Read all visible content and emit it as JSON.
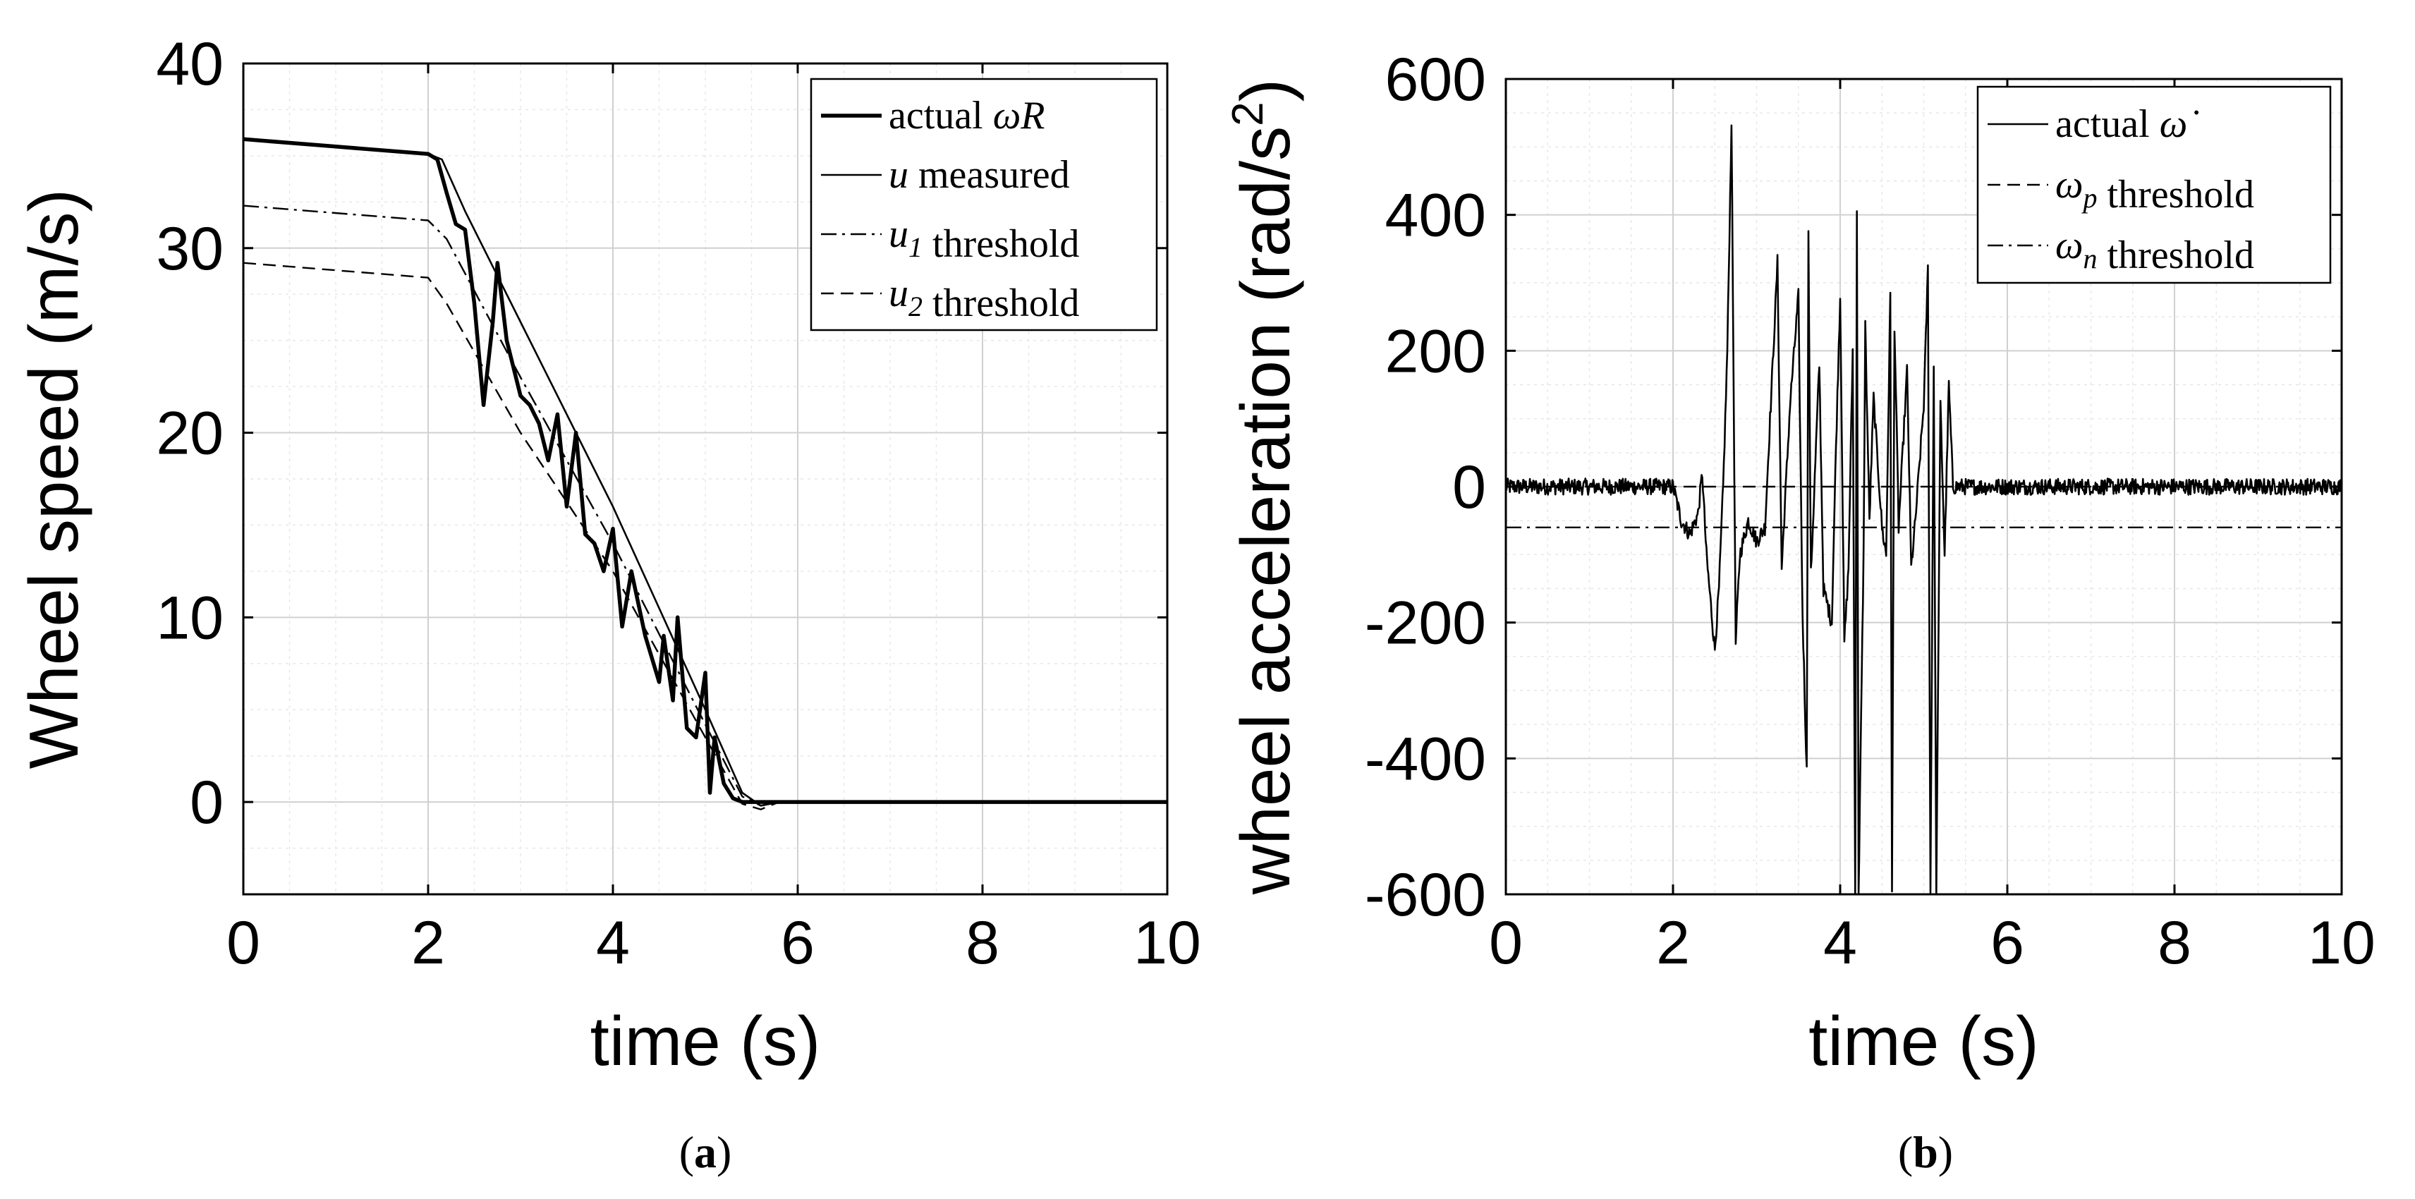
{
  "chart_data": [
    {
      "type": "line",
      "xlabel": "time (s)",
      "ylabel": "Wheel speed (m/s)",
      "xlim": [
        0,
        10
      ],
      "ylim": [
        -5,
        40
      ],
      "xticks": [
        "0",
        "2",
        "4",
        "6",
        "8",
        "10"
      ],
      "yticks": [
        "0",
        "10",
        "20",
        "30",
        "40"
      ],
      "grid": true,
      "legend_position": "top-right",
      "caption_letter": "a",
      "series": [
        {
          "name": "actual ωR",
          "legend_label": "actual ",
          "legend_math": "ωR",
          "style": "thick-solid",
          "points": [
            [
              0,
              35.9
            ],
            [
              1.0,
              35.5
            ],
            [
              2.0,
              35.1
            ],
            [
              2.1,
              34.8
            ],
            [
              2.2,
              33.0
            ],
            [
              2.3,
              31.3
            ],
            [
              2.4,
              31.0
            ],
            [
              2.5,
              27.0
            ],
            [
              2.6,
              21.5
            ],
            [
              2.7,
              26.0
            ],
            [
              2.75,
              29.2
            ],
            [
              2.85,
              25.0
            ],
            [
              3.0,
              22.0
            ],
            [
              3.1,
              21.5
            ],
            [
              3.2,
              20.5
            ],
            [
              3.3,
              18.5
            ],
            [
              3.4,
              21.0
            ],
            [
              3.5,
              16.0
            ],
            [
              3.6,
              20.0
            ],
            [
              3.7,
              14.5
            ],
            [
              3.8,
              14.0
            ],
            [
              3.9,
              12.5
            ],
            [
              4.0,
              14.8
            ],
            [
              4.1,
              9.5
            ],
            [
              4.2,
              12.5
            ],
            [
              4.35,
              9.0
            ],
            [
              4.5,
              6.5
            ],
            [
              4.55,
              9.0
            ],
            [
              4.65,
              5.5
            ],
            [
              4.7,
              10.0
            ],
            [
              4.8,
              4.0
            ],
            [
              4.9,
              3.5
            ],
            [
              5.0,
              7.0
            ],
            [
              5.05,
              0.5
            ],
            [
              5.1,
              3.5
            ],
            [
              5.2,
              1.0
            ],
            [
              5.3,
              0.2
            ],
            [
              5.4,
              0.0
            ],
            [
              5.6,
              0.0
            ],
            [
              10.0,
              0.0
            ]
          ]
        },
        {
          "name": "u measured",
          "legend_label": " measured",
          "legend_math": "u",
          "style": "thin-solid",
          "points": [
            [
              0,
              35.9
            ],
            [
              2.0,
              35.1
            ],
            [
              2.15,
              34.8
            ],
            [
              2.4,
              32.0
            ],
            [
              3.0,
              26.0
            ],
            [
              4.0,
              16.0
            ],
            [
              5.0,
              5.0
            ],
            [
              5.4,
              0.5
            ],
            [
              5.6,
              -0.2
            ],
            [
              5.8,
              0.0
            ],
            [
              10.0,
              0.0
            ]
          ]
        },
        {
          "name": "u1 threshold",
          "legend_label": " threshold",
          "legend_math": "u",
          "legend_sub": "1",
          "style": "dash-dot",
          "points": [
            [
              0,
              32.3
            ],
            [
              2.0,
              31.5
            ],
            [
              2.2,
              30.5
            ],
            [
              3.0,
              23.0
            ],
            [
              4.0,
              14.0
            ],
            [
              5.0,
              4.2
            ],
            [
              5.4,
              0.3
            ],
            [
              5.6,
              -0.2
            ],
            [
              5.8,
              0.0
            ],
            [
              10.0,
              0.0
            ]
          ]
        },
        {
          "name": "u2 threshold",
          "legend_label": " threshold",
          "legend_math": "u",
          "legend_sub": "2",
          "style": "dashed",
          "points": [
            [
              0,
              29.2
            ],
            [
              2.0,
              28.4
            ],
            [
              2.2,
              27.0
            ],
            [
              3.0,
              20.0
            ],
            [
              4.0,
              12.5
            ],
            [
              5.0,
              3.5
            ],
            [
              5.4,
              -0.1
            ],
            [
              5.6,
              -0.4
            ],
            [
              5.8,
              0.0
            ],
            [
              10.0,
              0.0
            ]
          ]
        }
      ]
    },
    {
      "type": "line",
      "xlabel": "time (s)",
      "ylabel": "wheel acceleration (rad/s",
      "ylabel_sup": "2",
      "ylabel_end": ")",
      "xlim": [
        0,
        10
      ],
      "ylim": [
        -600,
        600
      ],
      "xticks": [
        "0",
        "2",
        "4",
        "6",
        "8",
        "10"
      ],
      "yticks": [
        "-600",
        "-400",
        "-200",
        "0",
        "200",
        "400",
        "600"
      ],
      "grid": true,
      "legend_position": "top-right",
      "caption_letter": "b",
      "series": [
        {
          "name": "actual ω̇",
          "legend_label": "actual ",
          "legend_math": "ω̇",
          "style": "thin-solid",
          "noise_amplitude": 12,
          "points": [
            [
              0,
              0
            ],
            [
              2.0,
              0
            ],
            [
              2.1,
              -50
            ],
            [
              2.2,
              -70
            ],
            [
              2.3,
              -40
            ],
            [
              2.35,
              20
            ],
            [
              2.4,
              -100
            ],
            [
              2.5,
              -240
            ],
            [
              2.55,
              -150
            ],
            [
              2.6,
              0
            ],
            [
              2.65,
              200
            ],
            [
              2.7,
              540
            ],
            [
              2.75,
              -230
            ],
            [
              2.8,
              -100
            ],
            [
              2.9,
              -50
            ],
            [
              3.0,
              -80
            ],
            [
              3.1,
              -60
            ],
            [
              3.2,
              200
            ],
            [
              3.25,
              330
            ],
            [
              3.3,
              -120
            ],
            [
              3.4,
              120
            ],
            [
              3.5,
              280
            ],
            [
              3.55,
              -190
            ],
            [
              3.6,
              -420
            ],
            [
              3.62,
              370
            ],
            [
              3.65,
              -130
            ],
            [
              3.75,
              180
            ],
            [
              3.8,
              -150
            ],
            [
              3.9,
              -200
            ],
            [
              3.95,
              60
            ],
            [
              4.0,
              280
            ],
            [
              4.05,
              -230
            ],
            [
              4.1,
              -120
            ],
            [
              4.15,
              200
            ],
            [
              4.18,
              -600
            ],
            [
              4.2,
              410
            ],
            [
              4.22,
              -600
            ],
            [
              4.28,
              -100
            ],
            [
              4.3,
              240
            ],
            [
              4.35,
              -50
            ],
            [
              4.4,
              130
            ],
            [
              4.5,
              -60
            ],
            [
              4.55,
              -100
            ],
            [
              4.6,
              280
            ],
            [
              4.62,
              -600
            ],
            [
              4.65,
              240
            ],
            [
              4.7,
              -60
            ],
            [
              4.8,
              170
            ],
            [
              4.85,
              -120
            ],
            [
              4.9,
              -50
            ],
            [
              5.0,
              120
            ],
            [
              5.05,
              320
            ],
            [
              5.08,
              -600
            ],
            [
              5.12,
              180
            ],
            [
              5.15,
              -600
            ],
            [
              5.2,
              120
            ],
            [
              5.25,
              -100
            ],
            [
              5.3,
              150
            ],
            [
              5.35,
              0
            ],
            [
              10.0,
              0
            ]
          ]
        },
        {
          "name": "ω_p threshold",
          "legend_label": " threshold",
          "legend_math": "ω",
          "legend_sub": "p",
          "style": "dashed",
          "points": [
            [
              0,
              0
            ],
            [
              10,
              0
            ]
          ]
        },
        {
          "name": "ω_n threshold",
          "legend_label": " threshold",
          "legend_math": "ω",
          "legend_sub": "n",
          "style": "dash-dot",
          "points": [
            [
              0,
              -60
            ],
            [
              10,
              -60
            ]
          ]
        }
      ]
    }
  ]
}
